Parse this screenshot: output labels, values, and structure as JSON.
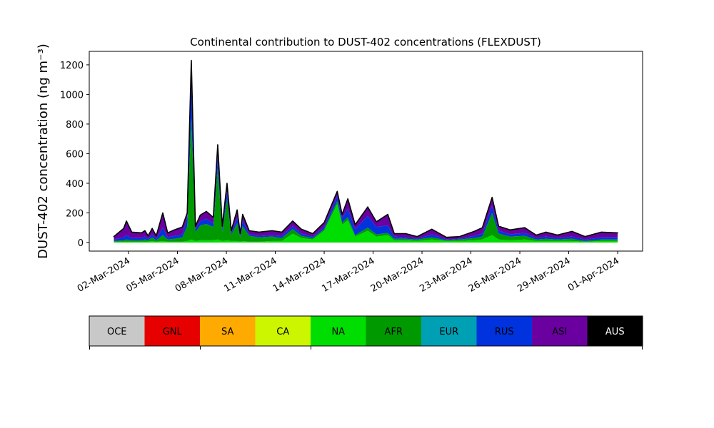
{
  "chart_data": {
    "type": "stacked_area",
    "title": "Continental contribution to DUST-402 concentrations (FLEXDUST)",
    "ylabel": "DUST-402 concentration (ng m⁻³)",
    "x": [
      1.1,
      1.7,
      1.87,
      2.2,
      2.8,
      3.0,
      3.2,
      3.45,
      3.7,
      4.1,
      4.4,
      4.8,
      5.3,
      5.6,
      5.85,
      6.1,
      6.4,
      6.77,
      7.2,
      7.47,
      7.75,
      8.04,
      8.3,
      8.66,
      8.85,
      9.0,
      9.4,
      10.0,
      10.8,
      11.4,
      12.07,
      12.6,
      13.3,
      14.0,
      14.8,
      15.1,
      15.45,
      15.9,
      16.67,
      17.2,
      17.9,
      18.3,
      19.0,
      19.7,
      20.6,
      21.5,
      22.3,
      23.2,
      23.7,
      24.3,
      24.7,
      25.4,
      26.3,
      27.0,
      27.6,
      28.3,
      29.2,
      30.0,
      31.0,
      32.0
    ],
    "xlim": [
      -0.41,
      33.53
    ],
    "xticks": [
      {
        "value": 2,
        "label": "02-Mar-2024"
      },
      {
        "value": 5,
        "label": "05-Mar-2024"
      },
      {
        "value": 8,
        "label": "08-Mar-2024"
      },
      {
        "value": 11,
        "label": "11-Mar-2024"
      },
      {
        "value": 14,
        "label": "14-Mar-2024"
      },
      {
        "value": 17,
        "label": "17-Mar-2024"
      },
      {
        "value": 20,
        "label": "20-Mar-2024"
      },
      {
        "value": 23,
        "label": "23-Mar-2024"
      },
      {
        "value": 26,
        "label": "26-Mar-2024"
      },
      {
        "value": 29,
        "label": "29-Mar-2024"
      },
      {
        "value": 32,
        "label": "01-Apr-2024"
      }
    ],
    "ylim": [
      -58,
      1291
    ],
    "yticks": [
      0,
      200,
      400,
      600,
      800,
      1000,
      1200
    ],
    "series": [
      {
        "name": "OCE",
        "color": "#c8c8c8",
        "values": [
          0,
          0,
          0,
          0,
          0,
          0,
          0,
          0,
          0,
          0,
          0,
          0,
          0,
          0,
          0,
          0,
          0,
          0,
          0,
          0,
          0,
          0,
          0,
          0,
          0,
          0,
          0,
          0,
          0,
          0,
          0,
          0,
          0,
          0,
          0,
          0,
          0,
          0,
          0,
          0,
          0,
          0,
          0,
          0,
          0,
          0,
          0,
          0,
          0,
          0,
          0,
          0,
          0,
          0,
          0,
          0,
          0,
          0,
          0,
          0
        ]
      },
      {
        "name": "GNL",
        "color": "#e60000",
        "values": [
          0,
          0,
          0,
          0,
          0,
          0,
          0,
          0,
          0,
          0,
          0,
          0,
          0,
          0,
          0,
          0,
          0,
          0,
          0,
          0,
          0,
          0,
          0,
          0,
          0,
          0,
          0,
          0,
          0,
          0,
          0,
          0,
          0,
          0,
          0,
          0,
          0,
          0,
          0,
          0,
          0,
          0,
          0,
          0,
          0,
          0,
          0,
          0,
          0,
          0,
          0,
          0,
          0,
          0,
          0,
          0,
          0,
          0,
          0,
          0
        ]
      },
      {
        "name": "SA",
        "color": "#ffaa00",
        "values": [
          0,
          0,
          0,
          0,
          0,
          0,
          0,
          0,
          0,
          0,
          0,
          0,
          0,
          0,
          0,
          0,
          0,
          0,
          0,
          0,
          0,
          0,
          0,
          0,
          0,
          0,
          0,
          0,
          0,
          0,
          0,
          0,
          0,
          0,
          0,
          0,
          0,
          0,
          0,
          0,
          0,
          0,
          0,
          0,
          0,
          0,
          0,
          0,
          0,
          0,
          0,
          0,
          0,
          0,
          0,
          0,
          0,
          0,
          0,
          0
        ]
      },
      {
        "name": "CA",
        "color": "#ccf500",
        "values": [
          0,
          0,
          0,
          0,
          0,
          0,
          0,
          0,
          0,
          0,
          0,
          0,
          0,
          0,
          0,
          0,
          0,
          0,
          0,
          0,
          0,
          0,
          0,
          0,
          0,
          0,
          0,
          0,
          0,
          0,
          0,
          0,
          0,
          0,
          0,
          0,
          0,
          0,
          0,
          0,
          0,
          0,
          0,
          0,
          0,
          0,
          0,
          0,
          0,
          0,
          0,
          0,
          0,
          0,
          0,
          0,
          0,
          0,
          0,
          0
        ]
      },
      {
        "name": "NA",
        "color": "#00dd00",
        "values": [
          5,
          5,
          5,
          5,
          5,
          5,
          5,
          10,
          5,
          10,
          5,
          5,
          5,
          10,
          20,
          10,
          15,
          15,
          15,
          20,
          10,
          15,
          10,
          10,
          5,
          10,
          5,
          5,
          10,
          10,
          60,
          30,
          20,
          80,
          260,
          120,
          150,
          40,
          80,
          40,
          50,
          15,
          15,
          10,
          20,
          10,
          10,
          15,
          20,
          50,
          20,
          15,
          20,
          10,
          10,
          10,
          10,
          5,
          10,
          10
        ]
      },
      {
        "name": "AFR",
        "color": "#009900",
        "values": [
          5,
          10,
          15,
          10,
          10,
          15,
          10,
          25,
          10,
          40,
          15,
          20,
          30,
          100,
          820,
          60,
          100,
          110,
          90,
          480,
          60,
          280,
          40,
          120,
          30,
          100,
          40,
          30,
          30,
          20,
          30,
          15,
          10,
          10,
          20,
          15,
          20,
          10,
          20,
          15,
          15,
          10,
          10,
          10,
          15,
          5,
          10,
          15,
          20,
          150,
          40,
          25,
          25,
          10,
          15,
          10,
          15,
          5,
          10,
          10
        ]
      },
      {
        "name": "EUR",
        "color": "#00a0b4",
        "values": [
          0,
          0,
          0,
          0,
          0,
          0,
          0,
          0,
          0,
          0,
          0,
          0,
          0,
          0,
          0,
          0,
          0,
          0,
          0,
          0,
          0,
          0,
          0,
          0,
          0,
          0,
          0,
          0,
          0,
          0,
          0,
          0,
          0,
          0,
          0,
          0,
          0,
          0,
          0,
          0,
          0,
          0,
          0,
          0,
          0,
          0,
          0,
          0,
          0,
          0,
          0,
          0,
          0,
          0,
          0,
          0,
          0,
          0,
          0,
          0
        ]
      },
      {
        "name": "RUS",
        "color": "#0033dd",
        "values": [
          10,
          20,
          30,
          15,
          15,
          20,
          10,
          20,
          10,
          50,
          15,
          20,
          20,
          60,
          240,
          20,
          30,
          35,
          25,
          80,
          20,
          50,
          10,
          40,
          10,
          40,
          10,
          10,
          10,
          15,
          20,
          15,
          10,
          15,
          35,
          30,
          60,
          40,
          80,
          50,
          50,
          15,
          10,
          5,
          20,
          5,
          5,
          15,
          20,
          50,
          20,
          15,
          20,
          10,
          15,
          10,
          15,
          10,
          15,
          15
        ]
      },
      {
        "name": "ASI",
        "color": "#6a00a0",
        "values": [
          20,
          60,
          95,
          40,
          35,
          40,
          20,
          40,
          20,
          100,
          30,
          40,
          50,
          30,
          150,
          20,
          40,
          50,
          40,
          80,
          20,
          55,
          20,
          50,
          15,
          40,
          25,
          25,
          30,
          25,
          35,
          30,
          20,
          30,
          30,
          25,
          65,
          30,
          60,
          35,
          75,
          20,
          25,
          15,
          35,
          15,
          15,
          30,
          40,
          55,
          30,
          30,
          35,
          20,
          30,
          20,
          35,
          20,
          35,
          30
        ]
      },
      {
        "name": "AUS",
        "color": "#000000",
        "values": [
          0,
          0,
          0,
          0,
          0,
          0,
          0,
          0,
          0,
          0,
          0,
          0,
          0,
          0,
          0,
          0,
          0,
          0,
          0,
          0,
          0,
          0,
          0,
          0,
          0,
          0,
          0,
          0,
          0,
          0,
          0,
          0,
          0,
          0,
          0,
          0,
          0,
          0,
          0,
          0,
          0,
          0,
          0,
          0,
          0,
          0,
          0,
          0,
          0,
          0,
          0,
          0,
          0,
          0,
          0,
          0,
          0,
          0,
          0,
          0
        ]
      }
    ]
  }
}
